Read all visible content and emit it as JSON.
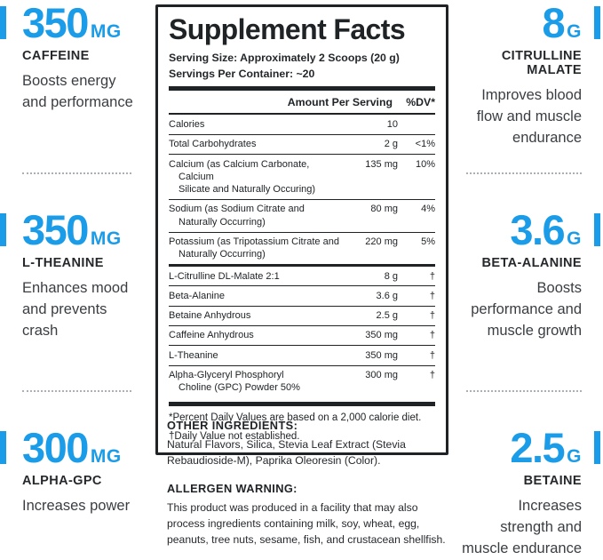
{
  "colors": {
    "accent": "#1b9ce8",
    "ink": "#1f2326",
    "dot": "#aab0b4"
  },
  "left_column": {
    "stats": [
      {
        "value": "350",
        "unit": "MG",
        "name": "CAFFEINE",
        "description": "Boosts energy\nand performance"
      },
      {
        "value": "350",
        "unit": "MG",
        "name": "L-THEANINE",
        "description": "Enhances mood\nand prevents\ncrash"
      },
      {
        "value": "300",
        "unit": "MG",
        "name": "ALPHA-GPC",
        "description": "Increases power"
      }
    ]
  },
  "right_column": {
    "stats": [
      {
        "value": "8",
        "unit": "G",
        "name": "CITRULLINE MALATE",
        "description": "Improves blood\nflow and muscle\nendurance"
      },
      {
        "value": "3.6",
        "unit": "G",
        "name": "BETA-ALANINE",
        "description": "Boosts\nperformance and\nmuscle growth"
      },
      {
        "value": "2.5",
        "unit": "G",
        "name": "BETAINE",
        "description": "Increases\nstrength and\nmuscle endurance"
      }
    ]
  },
  "panel": {
    "title": "Supplement Facts",
    "serving_size": "Serving Size: Approximately 2 Scoops (20 g)",
    "servings_per_container": "Servings Per Container: ~20",
    "header": {
      "amount": "Amount Per Serving",
      "dv": "%DV*"
    },
    "rows": [
      {
        "name": "Calories",
        "amount": "10",
        "dv": "",
        "cls": ""
      },
      {
        "name": "Total Carbohydrates",
        "amount": "2 g",
        "dv": "<1%",
        "cls": ""
      },
      {
        "name": "Calcium (as Calcium Carbonate, Calcium\nSilicate and Naturally Occuring)",
        "amount": "135 mg",
        "dv": "10%",
        "cls": ""
      },
      {
        "name": "Sodium (as Sodium Citrate and\nNaturally Occurring)",
        "amount": "80 mg",
        "dv": "4%",
        "cls": ""
      },
      {
        "name": "Potassium (as Tripotassium Citrate and\nNaturally Occurring)",
        "amount": "220 mg",
        "dv": "5%",
        "cls": "medium"
      },
      {
        "name": "L-Citrulline DL-Malate 2:1",
        "amount": "8 g",
        "dv": "†",
        "cls": ""
      },
      {
        "name": "Beta-Alanine",
        "amount": "3.6 g",
        "dv": "†",
        "cls": ""
      },
      {
        "name": "Betaine Anhydrous",
        "amount": "2.5 g",
        "dv": "†",
        "cls": ""
      },
      {
        "name": "Caffeine Anhydrous",
        "amount": "350 mg",
        "dv": "†",
        "cls": ""
      },
      {
        "name": "L-Theanine",
        "amount": "350 mg",
        "dv": "†",
        "cls": ""
      },
      {
        "name": "Alpha-Glyceryl Phosphoryl\nCholine (GPC) Powder 50%",
        "amount": "300 mg",
        "dv": "†",
        "cls": "last"
      }
    ],
    "footnotes": [
      "*Percent Daily Values are based on a 2,000 calorie diet.",
      "†Daily Value not established."
    ]
  },
  "other_ingredients": {
    "heading": "OTHER INGREDIENTS:",
    "text": "Natural Flavors, Silica, Stevia Leaf Extract (Stevia\nRebaudioside-M), Paprika Oleoresin (Color)."
  },
  "allergen_warning": {
    "heading": "ALLERGEN WARNING:",
    "text": "This product was produced in a facility that may also\nprocess ingredients containing milk, soy, wheat, egg,\npeanuts, tree nuts, sesame, fish, and crustacean shellfish."
  }
}
